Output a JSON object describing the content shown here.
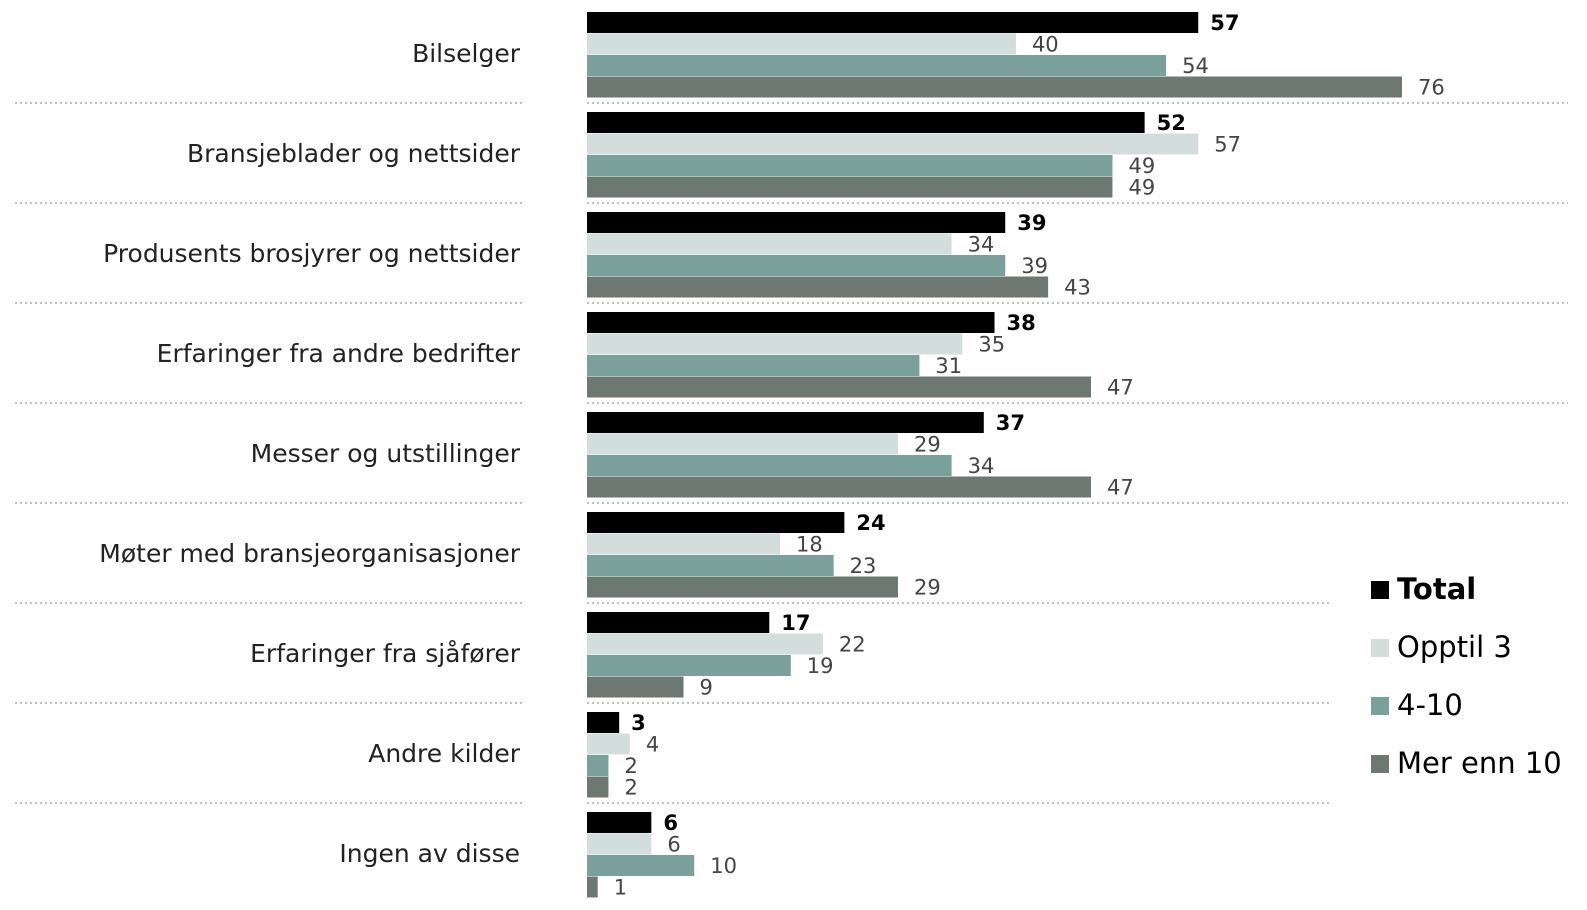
{
  "chart_data": {
    "type": "bar",
    "orientation": "horizontal",
    "categories": [
      "Bilselger",
      "Bransjeblader og nettsider",
      "Produsents brosjyrer og nettsider",
      "Erfaringer fra andre bedrifter",
      "Messer og utstillinger",
      "Møter med bransjeorganisasjoner",
      "Erfaringer fra sjåfører",
      "Andre kilder",
      "Ingen av disse"
    ],
    "series": [
      {
        "name": "Total",
        "color": "#000000",
        "values": [
          57,
          52,
          39,
          38,
          37,
          24,
          17,
          3,
          6
        ]
      },
      {
        "name": "Opptil 3",
        "color": "#d3dedc",
        "values": [
          40,
          57,
          34,
          35,
          29,
          18,
          22,
          4,
          6
        ]
      },
      {
        "name": "4-10",
        "color": "#79a09a",
        "values": [
          54,
          49,
          39,
          31,
          34,
          23,
          19,
          2,
          10
        ]
      },
      {
        "name": "Mer enn 10",
        "color": "#6e7873",
        "values": [
          76,
          49,
          43,
          47,
          47,
          29,
          9,
          2,
          1
        ]
      }
    ],
    "legend": "right"
  }
}
